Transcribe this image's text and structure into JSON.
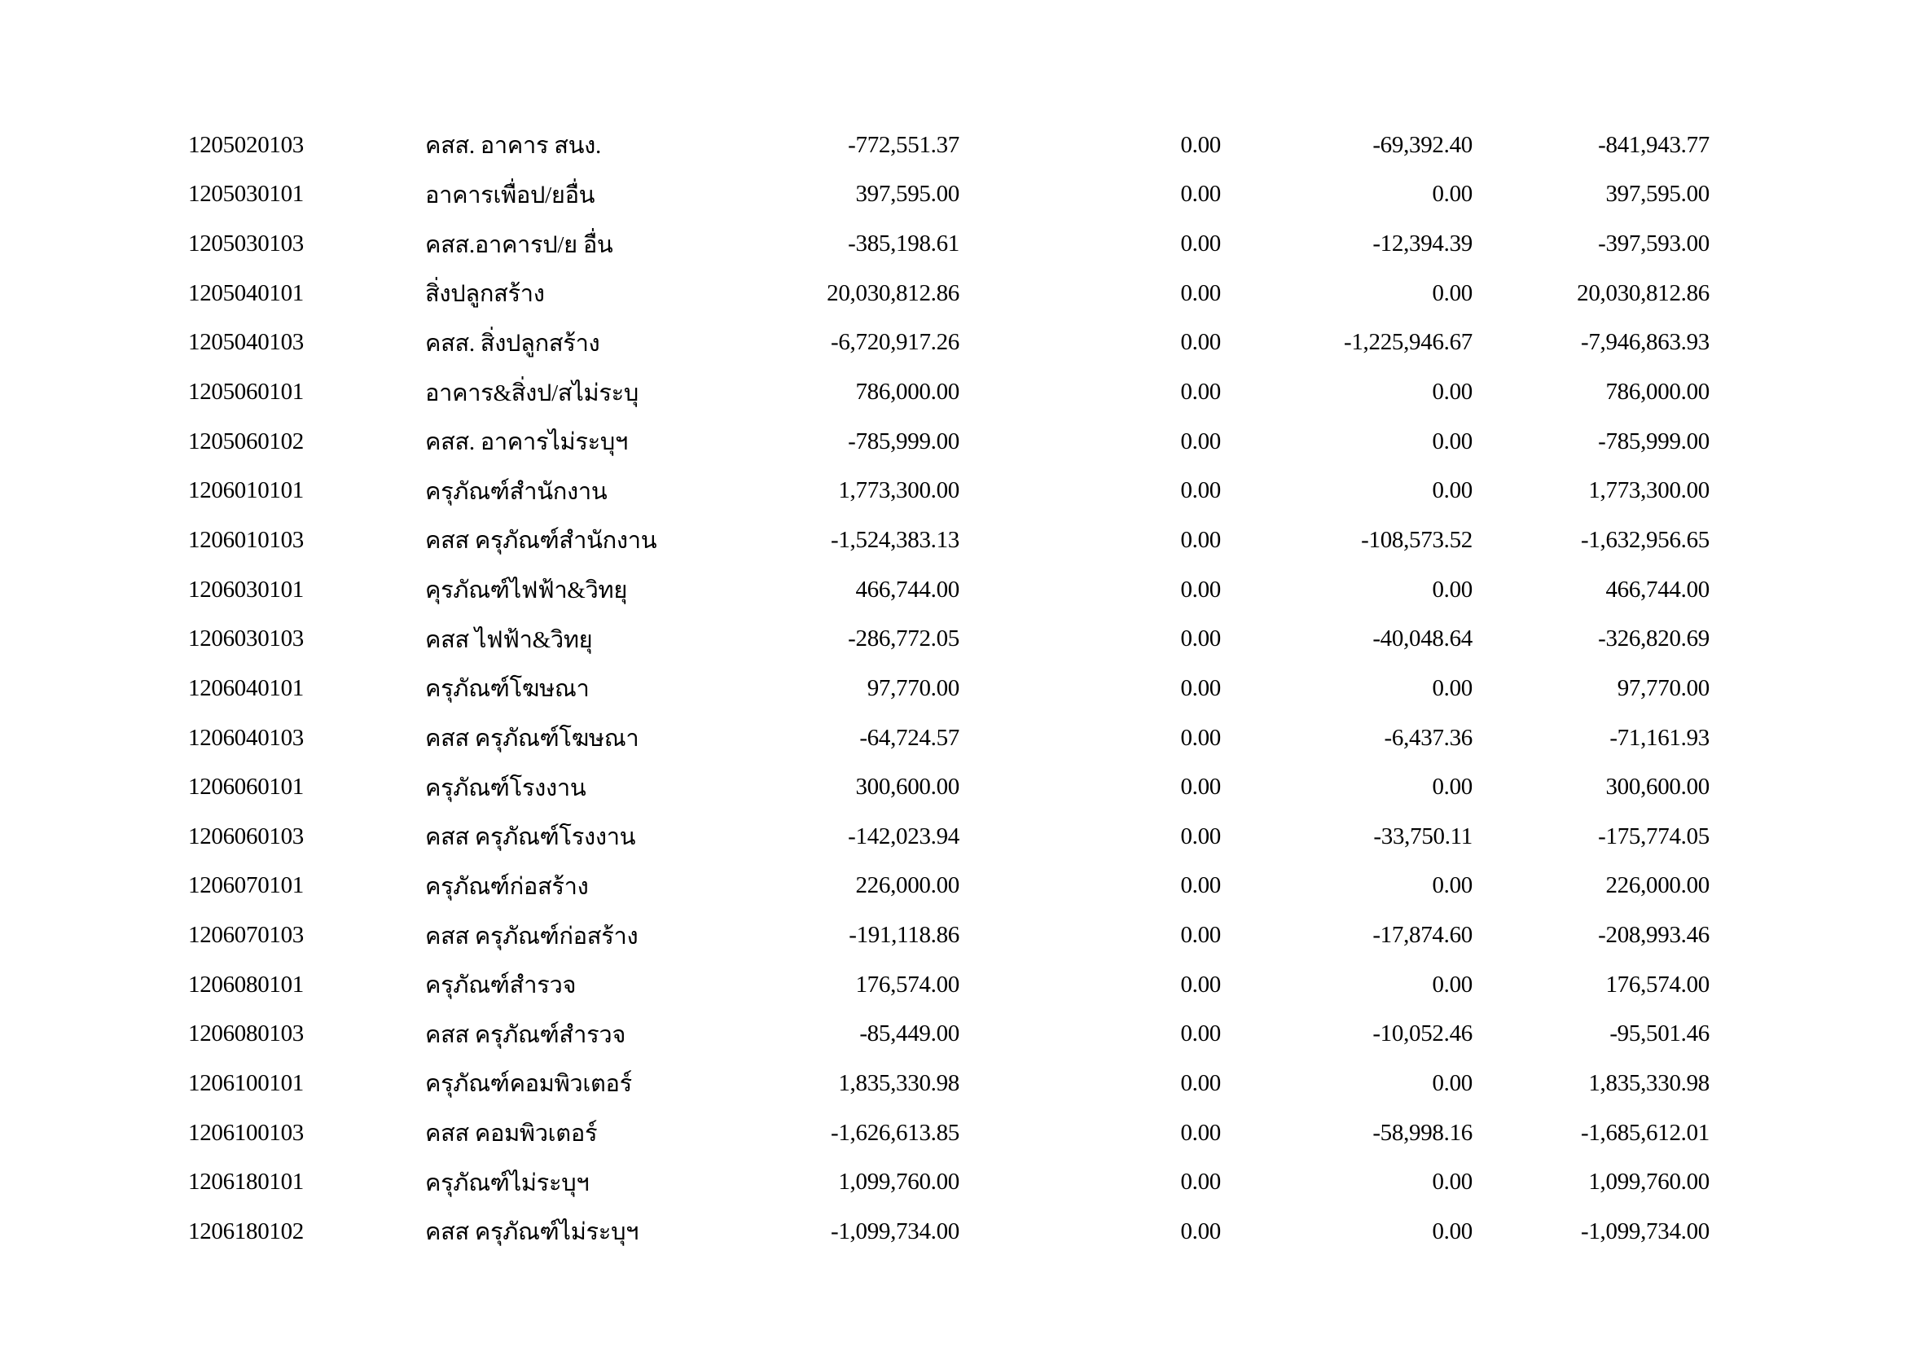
{
  "page": {
    "background_color": "#ffffff",
    "text_color": "#000000"
  },
  "table": {
    "rows": [
      {
        "code": "1205020103",
        "name": "คสส. อาคาร สนง.",
        "amounts": [
          "-772,551.37",
          "0.00",
          "-69,392.40",
          "-841,943.77"
        ]
      },
      {
        "code": "1205030101",
        "name": "อาคารเพื่อป/ยอื่น",
        "amounts": [
          "397,595.00",
          "0.00",
          "0.00",
          "397,595.00"
        ]
      },
      {
        "code": "1205030103",
        "name": "คสส.อาคารป/ย อื่น",
        "amounts": [
          "-385,198.61",
          "0.00",
          "-12,394.39",
          "-397,593.00"
        ]
      },
      {
        "code": "1205040101",
        "name": "สิ่งปลูกสร้าง",
        "amounts": [
          "20,030,812.86",
          "0.00",
          "0.00",
          "20,030,812.86"
        ]
      },
      {
        "code": "1205040103",
        "name": "คสส. สิ่งปลูกสร้าง",
        "amounts": [
          "-6,720,917.26",
          "0.00",
          "-1,225,946.67",
          "-7,946,863.93"
        ]
      },
      {
        "code": "1205060101",
        "name": "อาคาร&สิ่งป/สไม่ระบุ",
        "amounts": [
          "786,000.00",
          "0.00",
          "0.00",
          "786,000.00"
        ]
      },
      {
        "code": "1205060102",
        "name": "คสส. อาคารไม่ระบุฯ",
        "amounts": [
          "-785,999.00",
          "0.00",
          "0.00",
          "-785,999.00"
        ]
      },
      {
        "code": "1206010101",
        "name": "ครุภัณฑ์สำนักงาน",
        "amounts": [
          "1,773,300.00",
          "0.00",
          "0.00",
          "1,773,300.00"
        ]
      },
      {
        "code": "1206010103",
        "name": "คสส ครุภัณฑ์สำนักงาน",
        "amounts": [
          "-1,524,383.13",
          "0.00",
          "-108,573.52",
          "-1,632,956.65"
        ]
      },
      {
        "code": "1206030101",
        "name": "คุรภัณฑ์ไฟฟ้า&วิทยุ",
        "amounts": [
          "466,744.00",
          "0.00",
          "0.00",
          "466,744.00"
        ]
      },
      {
        "code": "1206030103",
        "name": "คสส ไฟฟ้า&วิทยุ",
        "amounts": [
          "-286,772.05",
          "0.00",
          "-40,048.64",
          "-326,820.69"
        ]
      },
      {
        "code": "1206040101",
        "name": "ครุภัณฑ์โฆษณา",
        "amounts": [
          "97,770.00",
          "0.00",
          "0.00",
          "97,770.00"
        ]
      },
      {
        "code": "1206040103",
        "name": "คสส ครุภัณฑ์โฆษณา",
        "amounts": [
          "-64,724.57",
          "0.00",
          "-6,437.36",
          "-71,161.93"
        ]
      },
      {
        "code": "1206060101",
        "name": "ครุภัณฑ์โรงงาน",
        "amounts": [
          "300,600.00",
          "0.00",
          "0.00",
          "300,600.00"
        ]
      },
      {
        "code": "1206060103",
        "name": "คสส ครุภัณฑ์โรงงาน",
        "amounts": [
          "-142,023.94",
          "0.00",
          "-33,750.11",
          "-175,774.05"
        ]
      },
      {
        "code": "1206070101",
        "name": "ครุภัณฑ์ก่อสร้าง",
        "amounts": [
          "226,000.00",
          "0.00",
          "0.00",
          "226,000.00"
        ]
      },
      {
        "code": "1206070103",
        "name": "คสส ครุภัณฑ์ก่อสร้าง",
        "amounts": [
          "-191,118.86",
          "0.00",
          "-17,874.60",
          "-208,993.46"
        ]
      },
      {
        "code": "1206080101",
        "name": "ครุภัณฑ์สำรวจ",
        "amounts": [
          "176,574.00",
          "0.00",
          "0.00",
          "176,574.00"
        ]
      },
      {
        "code": "1206080103",
        "name": "คสส ครุภัณฑ์สำรวจ",
        "amounts": [
          "-85,449.00",
          "0.00",
          "-10,052.46",
          "-95,501.46"
        ]
      },
      {
        "code": "1206100101",
        "name": "ครุภัณฑ์คอมพิวเตอร์",
        "amounts": [
          "1,835,330.98",
          "0.00",
          "0.00",
          "1,835,330.98"
        ]
      },
      {
        "code": "1206100103",
        "name": "คสส คอมพิวเตอร์",
        "amounts": [
          "-1,626,613.85",
          "0.00",
          "-58,998.16",
          "-1,685,612.01"
        ]
      },
      {
        "code": "1206180101",
        "name": "ครุภัณฑ์ไม่ระบุฯ",
        "amounts": [
          "1,099,760.00",
          "0.00",
          "0.00",
          "1,099,760.00"
        ]
      },
      {
        "code": "1206180102",
        "name": "คสส ครุภัณฑ์ไม่ระบุฯ",
        "amounts": [
          "-1,099,734.00",
          "0.00",
          "0.00",
          "-1,099,734.00"
        ]
      }
    ]
  }
}
